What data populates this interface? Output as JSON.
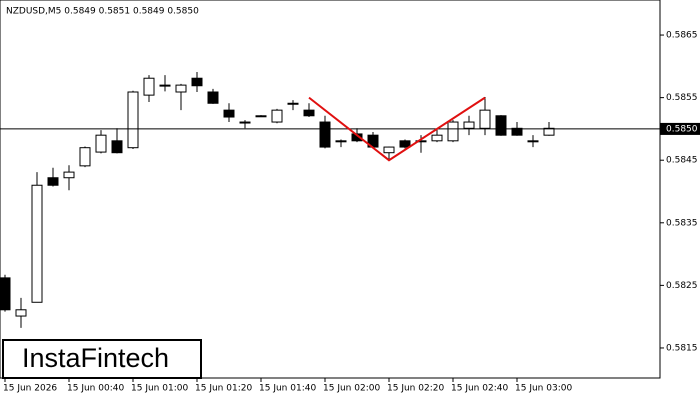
{
  "chart_data": {
    "type": "candlestick",
    "header": "NZDUSD,M5  0.5849 0.5851 0.5849 0.5850",
    "logo": "InstaFintech",
    "categories": [
      "15 Jun 2026",
      null,
      null,
      null,
      "15 Jun 00:40",
      null,
      null,
      null,
      "15 Jun 01:00",
      null,
      null,
      null,
      "15 Jun 01:20",
      null,
      null,
      null,
      "15 Jun 01:40",
      null,
      null,
      null,
      "15 Jun 02:00",
      null,
      null,
      null,
      "15 Jun 02:20",
      null,
      null,
      null,
      "15 Jun 02:40",
      null,
      null,
      null,
      "15 Jun 03:00",
      null,
      null
    ],
    "open": [
      0.58262,
      0.58201,
      0.58223,
      0.58422,
      0.58422,
      0.58441,
      0.58463,
      0.58481,
      0.5847,
      0.58554,
      0.58569,
      0.58559,
      0.58581,
      0.58559,
      0.5853,
      0.58511,
      0.58521,
      0.58511,
      0.58541,
      0.5853,
      0.58511,
      0.58481,
      0.58492,
      0.5849,
      0.58462,
      0.58481,
      0.58481,
      0.58481,
      0.58481,
      0.58501,
      0.58501,
      0.58521,
      0.58501,
      0.58481,
      0.5849
    ],
    "high": [
      0.58267,
      0.5823,
      0.58431,
      0.58438,
      0.58442,
      0.58472,
      0.58498,
      0.58501,
      0.58561,
      0.58586,
      0.58586,
      0.58572,
      0.58591,
      0.58564,
      0.58541,
      0.58514,
      0.58522,
      0.58532,
      0.58546,
      0.58541,
      0.58521,
      0.58483,
      0.58501,
      0.58495,
      0.58472,
      0.58483,
      0.5849,
      0.58501,
      0.58514,
      0.58521,
      0.58551,
      0.58522,
      0.58511,
      0.5849,
      0.58511
    ],
    "low": [
      0.58208,
      0.58182,
      0.58223,
      0.58408,
      0.58402,
      0.58439,
      0.58461,
      0.58461,
      0.58468,
      0.58543,
      0.5856,
      0.5853,
      0.58559,
      0.5854,
      0.58511,
      0.58501,
      0.5852,
      0.58509,
      0.5853,
      0.58519,
      0.58469,
      0.58471,
      0.58479,
      0.58469,
      0.5845,
      0.58469,
      0.58462,
      0.58479,
      0.58479,
      0.5849,
      0.5849,
      0.58489,
      0.58489,
      0.58471,
      0.58489
    ],
    "close": [
      0.58211,
      0.58211,
      0.5841,
      0.5841,
      0.58431,
      0.5847,
      0.5849,
      0.58462,
      0.58559,
      0.58581,
      0.5857,
      0.5857,
      0.58569,
      0.58541,
      0.58519,
      0.5851,
      0.58521,
      0.5853,
      0.58541,
      0.58521,
      0.58471,
      0.58481,
      0.58481,
      0.58471,
      0.58471,
      0.58471,
      0.58481,
      0.5849,
      0.58511,
      0.58511,
      0.5853,
      0.5849,
      0.5849,
      0.58481,
      0.58501
    ],
    "up_color": "#ffffff",
    "down_color": "#000000",
    "ylim": [
      0.58102,
      0.58706
    ],
    "yticks": [
      0.5815,
      0.5825,
      0.5835,
      0.5845,
      0.5855,
      0.5865
    ],
    "price_line": {
      "value": 0.585,
      "label": "0.5850"
    },
    "pattern": {
      "color": "#e01010",
      "x": [
        19,
        24,
        30
      ],
      "y": [
        0.5855,
        0.5845,
        0.5855
      ]
    }
  }
}
